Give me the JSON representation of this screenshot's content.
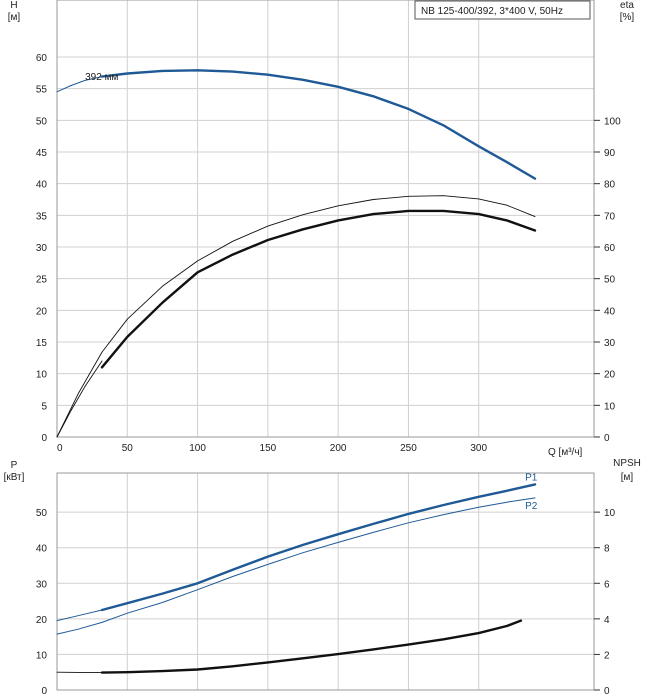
{
  "colors": {
    "curve_blue": "#1f5a96",
    "curve_black": "#111111",
    "grid": "#d0d0d0"
  },
  "chart_data": [
    {
      "type": "line",
      "name": "head-efficiency",
      "title": "NB 125-400/392, 3*400 V, 50Hz",
      "x_label_unit": "Q [м³/ч]",
      "xlim": [
        0,
        382
      ],
      "x_ticks": [
        0,
        50,
        100,
        150,
        200,
        250,
        300
      ],
      "left_axis": {
        "label": "H",
        "unit": "[м]",
        "lim": [
          0,
          69
        ],
        "ticks": [
          0,
          5,
          10,
          15,
          20,
          25,
          30,
          35,
          40,
          45,
          50,
          55,
          60
        ]
      },
      "right_axis": {
        "label": "eta",
        "unit": "[%]",
        "lim": [
          0,
          138
        ],
        "ticks": [
          0,
          10,
          20,
          30,
          40,
          50,
          60,
          70,
          80,
          90,
          100
        ]
      },
      "grid": true,
      "series": [
        {
          "name": "392 мм",
          "axis": "left",
          "style": "thin-blue",
          "x": [
            0,
            10,
            20,
            30,
            32
          ],
          "y": [
            54.5,
            55.5,
            56.3,
            56.8,
            56.9
          ]
        },
        {
          "name": "392 мм",
          "axis": "left",
          "style": "thick-blue",
          "x": [
            32,
            50,
            75,
            100,
            125,
            150,
            175,
            200,
            225,
            250,
            275,
            300,
            320,
            340
          ],
          "y": [
            56.9,
            57.4,
            57.8,
            57.9,
            57.7,
            57.2,
            56.4,
            55.3,
            53.8,
            51.8,
            49.2,
            45.9,
            43.4,
            40.8
          ]
        },
        {
          "axis": "left",
          "style": "thin-black",
          "x": [
            0,
            10,
            20,
            32
          ],
          "y": [
            0,
            4.2,
            8.0,
            12.0
          ]
        },
        {
          "axis": "left",
          "style": "thick-black",
          "x": [
            32,
            50,
            75,
            100,
            125,
            150,
            175,
            200,
            225,
            250,
            275,
            300,
            320,
            340
          ],
          "y": [
            11.0,
            15.8,
            21.2,
            26.0,
            28.8,
            31.1,
            32.8,
            34.2,
            35.2,
            35.7,
            35.7,
            35.2,
            34.2,
            32.6
          ]
        },
        {
          "axis": "left",
          "style": "thin-black",
          "x": [
            0,
            15,
            32,
            50,
            75,
            100,
            125,
            150,
            175,
            200,
            225,
            250,
            275,
            300,
            320,
            340
          ],
          "y": [
            0,
            6.8,
            13.4,
            18.6,
            23.8,
            27.8,
            30.9,
            33.3,
            35.1,
            36.5,
            37.5,
            38.0,
            38.1,
            37.6,
            36.6,
            34.8
          ]
        }
      ],
      "curve_labels": [
        {
          "text": "392 мм",
          "x": 20,
          "y": 57.0
        }
      ]
    },
    {
      "type": "line",
      "name": "power-npsh",
      "xlim": [
        0,
        382
      ],
      "x_ticks": [
        0,
        50,
        100,
        150,
        200,
        250,
        300
      ],
      "left_axis": {
        "label": "P",
        "unit": "[кВт]",
        "lim": [
          0,
          61
        ],
        "ticks": [
          0,
          10,
          20,
          30,
          40,
          50
        ]
      },
      "right_axis": {
        "label": "NPSH",
        "unit": "[м]",
        "lim": [
          0,
          12.2
        ],
        "ticks": [
          0,
          2,
          4,
          6,
          8,
          10
        ]
      },
      "grid": true,
      "series": [
        {
          "name": "P1",
          "axis": "left",
          "style": "thin-blue",
          "x": [
            0,
            15,
            32
          ],
          "y": [
            19.5,
            20.9,
            22.5
          ]
        },
        {
          "name": "P1",
          "axis": "left",
          "style": "thick-blue",
          "x": [
            32,
            50,
            75,
            100,
            125,
            150,
            175,
            200,
            225,
            250,
            275,
            300,
            320,
            340
          ],
          "y": [
            22.5,
            24.4,
            27.1,
            30.0,
            33.8,
            37.5,
            40.8,
            43.8,
            46.7,
            49.5,
            52.0,
            54.3,
            56.0,
            57.8
          ]
        },
        {
          "name": "P2",
          "axis": "left",
          "style": "thin-blue",
          "x": [
            0,
            15,
            32,
            50,
            75,
            100,
            125,
            150,
            175,
            200,
            225,
            250,
            275,
            300,
            320,
            340
          ],
          "y": [
            15.7,
            17.1,
            19.0,
            21.6,
            24.6,
            28.2,
            31.9,
            35.3,
            38.6,
            41.5,
            44.3,
            47.0,
            49.3,
            51.4,
            52.8,
            54.0
          ]
        },
        {
          "axis": "right",
          "style": "thin-black",
          "x": [
            0,
            15,
            32
          ],
          "y": [
            1.0,
            0.99,
            0.98
          ]
        },
        {
          "axis": "right",
          "style": "thick-black",
          "x": [
            32,
            50,
            75,
            100,
            125,
            150,
            175,
            200,
            225,
            250,
            275,
            300,
            320,
            330
          ],
          "y": [
            0.98,
            1.0,
            1.06,
            1.15,
            1.33,
            1.55,
            1.78,
            2.02,
            2.28,
            2.55,
            2.85,
            3.2,
            3.6,
            3.9
          ]
        }
      ],
      "curve_labels": [
        {
          "text": "P1",
          "x": 333,
          "y": 60.0
        },
        {
          "text": "P2",
          "x": 333,
          "y": 52.0
        }
      ]
    }
  ]
}
